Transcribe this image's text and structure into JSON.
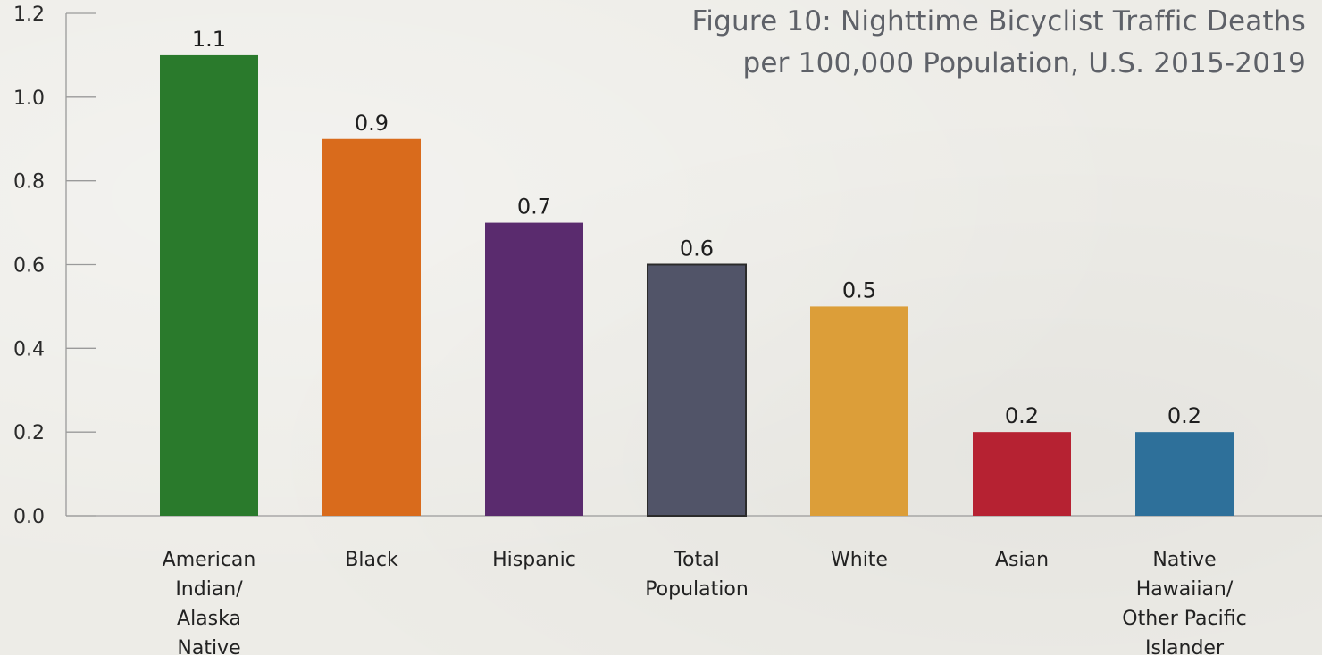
{
  "chart_data": {
    "type": "bar",
    "title_lines": [
      "Figure 10: Nighttime Bicyclist Traffic Deaths",
      "per 100,000 Population, U.S. 2015-2019"
    ],
    "categories": [
      [
        "American",
        "Indian/",
        "Alaska",
        "Native"
      ],
      [
        "Black"
      ],
      [
        "Hispanic"
      ],
      [
        "Total",
        "Population"
      ],
      [
        "White"
      ],
      [
        "Asian"
      ],
      [
        "Native",
        "Hawaiian/",
        "Other Pacific",
        "Islander"
      ]
    ],
    "values": [
      1.1,
      0.9,
      0.7,
      0.6,
      0.5,
      0.2,
      0.2
    ],
    "value_labels": [
      "1.1",
      "0.9",
      "0.7",
      "0.6",
      "0.5",
      "0.2",
      "0.2"
    ],
    "colors": [
      "#2a7a2c",
      "#d96b1c",
      "#5a2b6e",
      "#515468",
      "#dc9e39",
      "#b62232",
      "#2e709a"
    ],
    "ylim": [
      0,
      1.2
    ],
    "yticks": [
      0.0,
      0.2,
      0.4,
      0.6,
      0.8,
      1.0,
      1.2
    ],
    "ytick_labels": [
      "0.0",
      "0.2",
      "0.4",
      "0.6",
      "0.8",
      "1.0",
      "1.2"
    ],
    "grid": false,
    "legend": "none",
    "xlabel": "",
    "ylabel": ""
  }
}
